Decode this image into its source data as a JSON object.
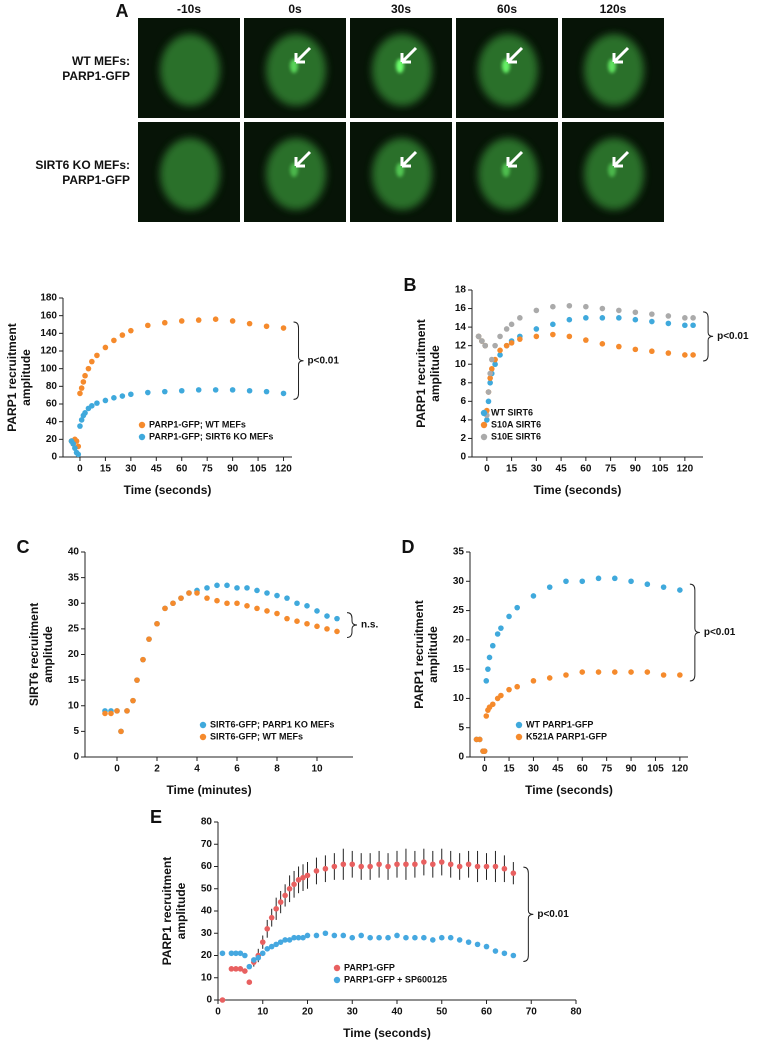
{
  "panel_a": {
    "letter": "A",
    "times": [
      "-10s",
      "0s",
      "30s",
      "60s",
      "120s"
    ],
    "rows": [
      [
        "WT MEFs:",
        "PARP1-GFP"
      ],
      [
        "SIRT6 KO MEFs:",
        "PARP1-GFP"
      ]
    ]
  },
  "chart_data": [
    {
      "type": "scatter",
      "xlabel": "Time (seconds)",
      "ylabel": [
        "PARP1 recruitment",
        "amplitude"
      ],
      "xlim": [
        -10,
        125
      ],
      "xticks": [
        0,
        15,
        30,
        45,
        60,
        75,
        90,
        105,
        120
      ],
      "ylim": [
        0,
        180
      ],
      "yticks": [
        0,
        20,
        40,
        60,
        80,
        100,
        120,
        140,
        160,
        180
      ],
      "legend": "lower right",
      "annotation": "p<0.01",
      "x": [
        -5,
        -4,
        -3,
        -2,
        -1,
        0,
        1,
        2,
        3,
        5,
        7,
        10,
        15,
        20,
        25,
        30,
        40,
        50,
        60,
        70,
        80,
        90,
        100,
        110,
        120
      ],
      "series": [
        {
          "name": "PARP1-GFP; WT MEFs",
          "color": "#f58a2c",
          "values": [
            18,
            15,
            20,
            18,
            12,
            72,
            78,
            85,
            92,
            100,
            108,
            115,
            124,
            132,
            138,
            143,
            149,
            152,
            154,
            155,
            156,
            154,
            151,
            148,
            146
          ]
        },
        {
          "name": "PARP1-GFP; SIRT6 KO MEFs",
          "color": "#3fa9dc",
          "values": [
            18,
            15,
            10,
            5,
            3,
            35,
            42,
            47,
            50,
            55,
            58,
            61,
            64,
            67,
            69,
            71,
            73,
            74,
            75,
            76,
            76,
            76,
            75,
            74,
            72
          ]
        }
      ]
    },
    {
      "type": "scatter",
      "panel": "B",
      "xlabel": "Time (seconds)",
      "ylabel": [
        "PARP1 recruitment",
        "amplitude"
      ],
      "xlim": [
        -9,
        131
      ],
      "xticks": [
        0,
        15,
        30,
        45,
        60,
        75,
        90,
        105,
        120
      ],
      "ylim": [
        0,
        18
      ],
      "yticks": [
        0,
        2,
        4,
        6,
        8,
        10,
        12,
        14,
        16,
        18
      ],
      "legend": "lower left",
      "annotation": "p<0.01",
      "x": [
        -5,
        -3,
        -1,
        0,
        1,
        2,
        3,
        5,
        8,
        12,
        15,
        20,
        30,
        40,
        50,
        60,
        70,
        80,
        90,
        100,
        110,
        120,
        125
      ],
      "series": [
        {
          "name": "WT SIRT6",
          "color": "#3fa9dc",
          "values": [
            13,
            12.5,
            12,
            4,
            6,
            8,
            9,
            10,
            11,
            12,
            12.5,
            13,
            13.8,
            14.3,
            14.8,
            15,
            15,
            15,
            14.8,
            14.6,
            14.4,
            14.2,
            14.2
          ]
        },
        {
          "name": "S10A SIRT6",
          "color": "#f58a2c",
          "values": [
            13,
            12.5,
            12,
            5,
            7,
            8.5,
            9.5,
            10.5,
            11.5,
            12,
            12.3,
            12.7,
            13,
            13.2,
            13,
            12.6,
            12.2,
            11.9,
            11.6,
            11.4,
            11.2,
            11,
            11
          ]
        },
        {
          "name": "S10E SIRT6",
          "color": "#aaaaaa",
          "values": [
            13,
            12.5,
            12,
            4.5,
            7,
            9,
            10.5,
            12,
            13,
            13.8,
            14.3,
            15,
            15.8,
            16.2,
            16.3,
            16.2,
            16,
            15.8,
            15.6,
            15.4,
            15.2,
            15,
            15
          ]
        }
      ]
    },
    {
      "type": "scatter",
      "panel": "C",
      "xlabel": "Time (minutes)",
      "ylabel": [
        "SIRT6 recruitment",
        "amplitude"
      ],
      "xlim": [
        -1.6,
        11.8
      ],
      "xticks": [
        0,
        2,
        4,
        6,
        8,
        10
      ],
      "ylim": [
        0,
        40
      ],
      "yticks": [
        0,
        5,
        10,
        15,
        20,
        25,
        30,
        35,
        40
      ],
      "legend": "lower right",
      "annotation": "n.s.",
      "x": [
        -0.6,
        -0.3,
        0,
        0.2,
        0.5,
        0.8,
        1,
        1.3,
        1.6,
        2,
        2.4,
        2.8,
        3.2,
        3.6,
        4,
        4.5,
        5,
        5.5,
        6,
        6.5,
        7,
        7.5,
        8,
        8.5,
        9,
        9.5,
        10,
        10.5,
        11
      ],
      "series": [
        {
          "name": "SIRT6-GFP; PARP1 KO MEFs",
          "color": "#3fa9dc",
          "values": [
            9,
            9,
            9,
            5,
            9,
            11,
            15,
            19,
            23,
            26,
            29,
            30,
            31,
            32,
            32.5,
            33,
            33.5,
            33.5,
            33,
            33,
            32.5,
            32,
            31.5,
            31,
            30,
            29.5,
            28.5,
            27.5,
            27
          ]
        },
        {
          "name": "SIRT6-GFP; WT MEFs",
          "color": "#f58a2c",
          "values": [
            8.5,
            8.5,
            9,
            5,
            9,
            11,
            15,
            19,
            23,
            26,
            29,
            30,
            31,
            32,
            32,
            31,
            30.5,
            30,
            30,
            29.5,
            29,
            28.5,
            28,
            27,
            26.5,
            26,
            25.5,
            25,
            24.5
          ]
        }
      ]
    },
    {
      "type": "scatter",
      "panel": "D",
      "xlabel": "Time (seconds)",
      "ylabel": [
        "PARP1 recruitment",
        "amplitude"
      ],
      "xlim": [
        -9,
        125
      ],
      "xticks": [
        0,
        15,
        30,
        45,
        60,
        75,
        90,
        105,
        120
      ],
      "ylim": [
        0,
        35
      ],
      "yticks": [
        0,
        5,
        10,
        15,
        20,
        25,
        30,
        35
      ],
      "legend": "lower center",
      "annotation": "p<0.01",
      "x": [
        -5,
        -3,
        -1,
        0,
        1,
        2,
        3,
        5,
        8,
        10,
        15,
        20,
        30,
        40,
        50,
        60,
        70,
        80,
        90,
        100,
        110,
        120
      ],
      "series": [
        {
          "name": "WT PARP1-GFP",
          "color": "#3fa9dc",
          "values": [
            3,
            3,
            1,
            1,
            13,
            15,
            17,
            19,
            21,
            22,
            24,
            25.5,
            27.5,
            29,
            30,
            30,
            30.5,
            30.5,
            30,
            29.5,
            29,
            28.5
          ]
        },
        {
          "name": "K521A PARP1-GFP",
          "color": "#f58a2c",
          "values": [
            3,
            3,
            1,
            1,
            7,
            8,
            8.5,
            9,
            10,
            10.5,
            11.5,
            12,
            13,
            13.5,
            14,
            14.5,
            14.5,
            14.5,
            14.5,
            14.5,
            14,
            14
          ]
        }
      ]
    },
    {
      "type": "scatter",
      "panel": "E",
      "xlabel": "Time (seconds)",
      "ylabel": [
        "PARP1 recruitment",
        "amplitude"
      ],
      "xlim": [
        0,
        80
      ],
      "xticks": [
        0,
        10,
        20,
        30,
        40,
        50,
        60,
        70,
        80
      ],
      "ylim": [
        0,
        80
      ],
      "yticks": [
        0,
        10,
        20,
        30,
        40,
        50,
        60,
        70,
        80
      ],
      "legend": "lower center",
      "annotation": "p<0.01",
      "x": [
        1,
        3,
        4,
        5,
        6,
        7,
        8,
        9,
        10,
        11,
        12,
        13,
        14,
        15,
        16,
        17,
        18,
        19,
        20,
        22,
        24,
        26,
        28,
        30,
        32,
        34,
        36,
        38,
        40,
        42,
        44,
        46,
        48,
        50,
        52,
        54,
        56,
        58,
        60,
        62,
        64,
        66
      ],
      "series": [
        {
          "name": "PARP1-GFP",
          "color": "#e86060",
          "values": [
            0,
            14,
            14,
            14,
            13,
            8,
            17,
            20,
            26,
            32,
            37,
            41,
            44,
            47,
            50,
            52,
            54,
            55,
            56,
            58,
            59,
            60,
            61,
            61,
            60,
            60,
            61,
            60,
            61,
            61,
            61,
            62,
            61,
            62,
            61,
            60,
            61,
            60,
            60,
            60,
            59,
            57
          ],
          "errors": [
            0,
            1,
            1,
            1,
            1,
            1,
            2,
            3,
            3,
            4,
            4,
            5,
            5,
            5,
            6,
            6,
            6,
            6,
            6,
            6,
            6,
            6,
            7,
            6,
            6,
            6,
            6,
            6,
            6,
            7,
            6,
            6,
            6,
            6,
            6,
            6,
            6,
            7,
            6,
            7,
            6,
            5
          ]
        },
        {
          "name": "PARP1-GFP + SP600125",
          "color": "#45a8e0",
          "values": [
            21,
            21,
            21,
            21,
            20,
            15,
            18,
            19,
            21,
            23,
            24,
            25,
            26,
            27,
            27,
            28,
            28,
            28,
            29,
            29,
            30,
            29,
            29,
            28,
            29,
            28,
            28,
            28,
            29,
            28,
            28,
            28,
            27,
            28,
            28,
            27,
            26,
            25,
            24,
            22,
            21,
            20
          ]
        }
      ]
    }
  ]
}
